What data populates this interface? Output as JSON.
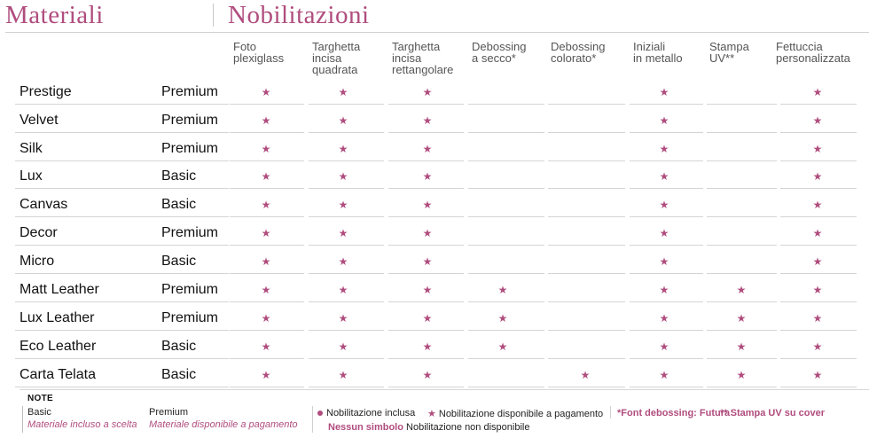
{
  "header": {
    "materials_title": "Materiali",
    "finishes_title": "Nobilitazioni"
  },
  "columns": [
    "Foto\nplexiglass",
    "Targhetta\nincisa\nquadrata",
    "Targhetta\nincisa\nrettangolare",
    "Debossing\na secco*",
    "Debossing\ncolorato*",
    "Iniziali\nin metallo",
    "Stampa\nUV**",
    "Fettuccia\npersonalizzata"
  ],
  "rows": [
    {
      "name": "Prestige",
      "tier": "Premium",
      "cells": [
        true,
        true,
        true,
        false,
        false,
        true,
        false,
        true
      ]
    },
    {
      "name": "Velvet",
      "tier": "Premium",
      "cells": [
        true,
        true,
        true,
        false,
        false,
        true,
        false,
        true
      ]
    },
    {
      "name": "Silk",
      "tier": "Premium",
      "cells": [
        true,
        true,
        true,
        false,
        false,
        true,
        false,
        true
      ]
    },
    {
      "name": "Lux",
      "tier": "Basic",
      "cells": [
        true,
        true,
        true,
        false,
        false,
        true,
        false,
        true
      ]
    },
    {
      "name": "Canvas",
      "tier": "Basic",
      "cells": [
        true,
        true,
        true,
        false,
        false,
        true,
        false,
        true
      ]
    },
    {
      "name": "Decor",
      "tier": "Premium",
      "cells": [
        true,
        true,
        true,
        false,
        false,
        true,
        false,
        true
      ]
    },
    {
      "name": "Micro",
      "tier": "Basic",
      "cells": [
        true,
        true,
        true,
        false,
        false,
        true,
        false,
        true
      ]
    },
    {
      "name": "Matt Leather",
      "tier": "Premium",
      "cells": [
        true,
        true,
        true,
        true,
        false,
        true,
        true,
        true
      ]
    },
    {
      "name": "Lux Leather",
      "tier": "Premium",
      "cells": [
        true,
        true,
        true,
        true,
        false,
        true,
        true,
        true
      ]
    },
    {
      "name": "Eco Leather",
      "tier": "Basic",
      "cells": [
        true,
        true,
        true,
        true,
        false,
        true,
        true,
        true
      ]
    },
    {
      "name": "Carta Telata",
      "tier": "Basic",
      "cells": [
        true,
        true,
        true,
        false,
        true,
        true,
        true,
        true
      ]
    }
  ],
  "notes": {
    "title": "NOTE",
    "basic_label": "Basic",
    "basic_desc": "Materiale incluso a scelta",
    "premium_label": "Premium",
    "premium_desc": "Materiale disponibile a pagamento",
    "included": "Nobilitazione inclusa",
    "paid": "Nobilitazione disponibile a pagamento",
    "no_symbol_label": "Nessun simbolo",
    "no_symbol_desc": "Nobilitazione non disponibile",
    "font_note": "*Font debossing: Futura",
    "uv_note": "** Stampa UV su cover"
  },
  "icons": {
    "star": "star-icon",
    "dot": "dot-icon"
  },
  "colors": {
    "accent": "#b04d7e",
    "rule": "#d4d4d4"
  }
}
